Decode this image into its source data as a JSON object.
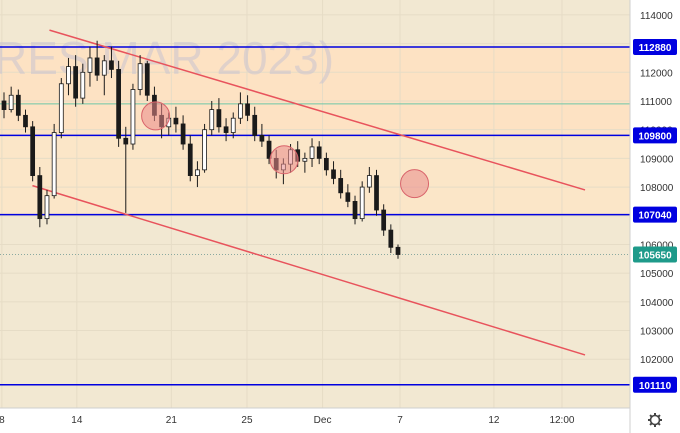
{
  "chart_data": {
    "type": "candlestick",
    "watermark": "RES MAR 2023)",
    "y_ticks": [
      102000,
      103000,
      104000,
      105000,
      106000,
      107000,
      108000,
      109000,
      110000,
      111000,
      112000,
      113000,
      114000
    ],
    "x_ticks": [
      "8",
      "14",
      "21",
      "25",
      "Dec",
      "7",
      "12",
      "12:00"
    ],
    "ylim": [
      100300,
      114450
    ],
    "levels": [
      {
        "value": 112880,
        "label": "112880",
        "color": "#0000e0"
      },
      {
        "value": 109800,
        "label": "109800",
        "color": "#0000e0"
      },
      {
        "value": 107040,
        "label": "107040",
        "color": "#0000e0"
      },
      {
        "value": 101110,
        "label": "101110",
        "color": "#0000e0"
      }
    ],
    "last_price": {
      "value": 105650,
      "label": "105650",
      "color": "#1e9a8a"
    },
    "green_line": 110900,
    "channel_upper": {
      "from": [
        0.0785,
        113470
      ],
      "to": [
        0.9286,
        107900
      ]
    },
    "channel_lower": {
      "from": [
        0.0515,
        108050
      ],
      "to": [
        0.9286,
        102150
      ]
    },
    "markers": [
      {
        "t": 0.247,
        "price": 110480
      },
      {
        "t": 0.451,
        "price": 108950
      },
      {
        "t": 0.658,
        "price": 108120
      }
    ],
    "zones": [
      {
        "from": 109800,
        "to": 112880,
        "color": "#fde2c3"
      },
      {
        "from": 107040,
        "to": 109800,
        "color": "#fbe6c8"
      }
    ],
    "candles": [
      [
        111000,
        111300,
        110400,
        110700
      ],
      [
        110700,
        111500,
        110600,
        111200
      ],
      [
        111200,
        111400,
        110300,
        110500
      ],
      [
        110500,
        110700,
        109900,
        110100
      ],
      [
        110100,
        110300,
        108200,
        108400
      ],
      [
        108400,
        108700,
        106600,
        106900
      ],
      [
        106900,
        107900,
        106700,
        107700
      ],
      [
        107700,
        110200,
        107600,
        109900
      ],
      [
        109900,
        111800,
        109700,
        111600
      ],
      [
        111600,
        112500,
        111200,
        112200
      ],
      [
        112200,
        112600,
        110800,
        111100
      ],
      [
        111100,
        112300,
        110900,
        112000
      ],
      [
        112000,
        112900,
        111500,
        112500
      ],
      [
        112500,
        113100,
        111700,
        111900
      ],
      [
        111900,
        112600,
        111200,
        112400
      ],
      [
        112400,
        112900,
        111800,
        112100
      ],
      [
        112100,
        112400,
        109400,
        109700
      ],
      [
        109700,
        110100,
        107100,
        109500
      ],
      [
        109500,
        111600,
        109300,
        111400
      ],
      [
        111400,
        112600,
        111200,
        112300
      ],
      [
        112300,
        112400,
        111000,
        111200
      ],
      [
        111200,
        111500,
        110300,
        110500
      ],
      [
        110500,
        110900,
        109700,
        110100
      ],
      [
        110100,
        110600,
        109800,
        110400
      ],
      [
        110400,
        110800,
        109900,
        110200
      ],
      [
        110200,
        110500,
        109300,
        109500
      ],
      [
        109500,
        109800,
        108200,
        108400
      ],
      [
        108400,
        108900,
        108000,
        108600
      ],
      [
        108600,
        110200,
        108500,
        110000
      ],
      [
        110000,
        111000,
        109800,
        110700
      ],
      [
        110700,
        111100,
        109900,
        110100
      ],
      [
        110100,
        110400,
        109600,
        109900
      ],
      [
        109900,
        110600,
        109700,
        110400
      ],
      [
        110400,
        111300,
        110200,
        110900
      ],
      [
        110900,
        111200,
        110300,
        110500
      ],
      [
        110500,
        110800,
        109600,
        109800
      ],
      [
        109800,
        110200,
        109400,
        109600
      ],
      [
        109600,
        109800,
        108800,
        109000
      ],
      [
        109000,
        109300,
        108300,
        108600
      ],
      [
        108600,
        109000,
        108100,
        108800
      ],
      [
        108800,
        109500,
        108500,
        109300
      ],
      [
        109300,
        109600,
        108700,
        108900
      ],
      [
        108900,
        109200,
        108500,
        109000
      ],
      [
        109000,
        109700,
        108700,
        109400
      ],
      [
        109400,
        109600,
        108800,
        109000
      ],
      [
        109000,
        109200,
        108400,
        108600
      ],
      [
        108600,
        108900,
        108100,
        108300
      ],
      [
        108300,
        108600,
        107600,
        107800
      ],
      [
        107800,
        108100,
        107300,
        107500
      ],
      [
        107500,
        107700,
        106700,
        106900
      ],
      [
        106900,
        108200,
        106800,
        108000
      ],
      [
        108000,
        108700,
        107800,
        108400
      ],
      [
        108400,
        108600,
        107000,
        107200
      ],
      [
        107200,
        107400,
        106300,
        106500
      ],
      [
        106500,
        106700,
        105700,
        105900
      ],
      [
        105900,
        106000,
        105500,
        105650
      ]
    ]
  }
}
